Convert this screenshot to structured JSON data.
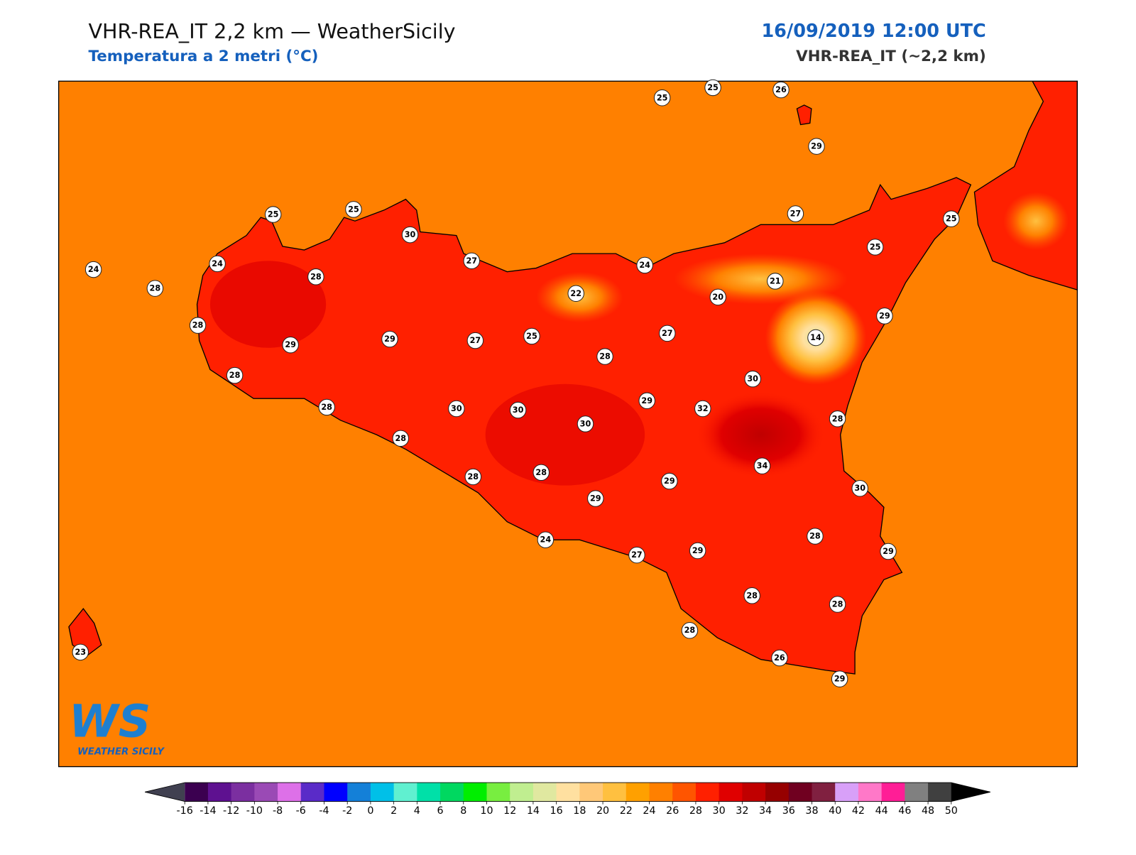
{
  "header": {
    "title": "VHR-REA_IT 2,2 km — WeatherSicily",
    "subtitle": "Temperatura a 2 metri (°C)",
    "date": "16/09/2019 12:00 UTC",
    "model": "VHR-REA_IT (~2,2 km)"
  },
  "stations": [
    25,
    25,
    26,
    29,
    25,
    25,
    30,
    27,
    24,
    24,
    28,
    28,
    24,
    27,
    25,
    25,
    21,
    20,
    22,
    29,
    14,
    28,
    29,
    29,
    27,
    25,
    27,
    28,
    30,
    28,
    28,
    30,
    30,
    30,
    29,
    32,
    28,
    28,
    34,
    28,
    28,
    29,
    29,
    30,
    24,
    27,
    29,
    28,
    29,
    28,
    28,
    28,
    26,
    29,
    23
  ],
  "colorbar": {
    "ticks": [
      -16,
      -14,
      -12,
      -10,
      -8,
      -6,
      -4,
      -2,
      0,
      2,
      4,
      6,
      8,
      10,
      12,
      14,
      16,
      18,
      20,
      22,
      24,
      26,
      28,
      30,
      32,
      34,
      36,
      38,
      40,
      42,
      44,
      46,
      48,
      50
    ],
    "colors": [
      "#3b0050",
      "#5e1190",
      "#7b2fa0",
      "#9a4ab5",
      "#dd70e8",
      "#5a2bc8",
      "#0000ff",
      "#1480d8",
      "#00c0e8",
      "#60f0d0",
      "#00e0a8",
      "#00d860",
      "#00ee00",
      "#78ee40",
      "#c0ee90",
      "#e0e8a0",
      "#ffe0a0",
      "#ffc878",
      "#ffc040",
      "#ffa000",
      "#ff8000",
      "#ff5500",
      "#ff2000",
      "#e00000",
      "#c00000",
      "#960000",
      "#700020",
      "#802040",
      "#d8a0f8",
      "#ff78c8",
      "#ff1e96",
      "#808080",
      "#404040"
    ],
    "under": "#404050",
    "over": "#000000"
  },
  "logo": {
    "mark": "WS",
    "name": "WEATHER SICILY"
  }
}
